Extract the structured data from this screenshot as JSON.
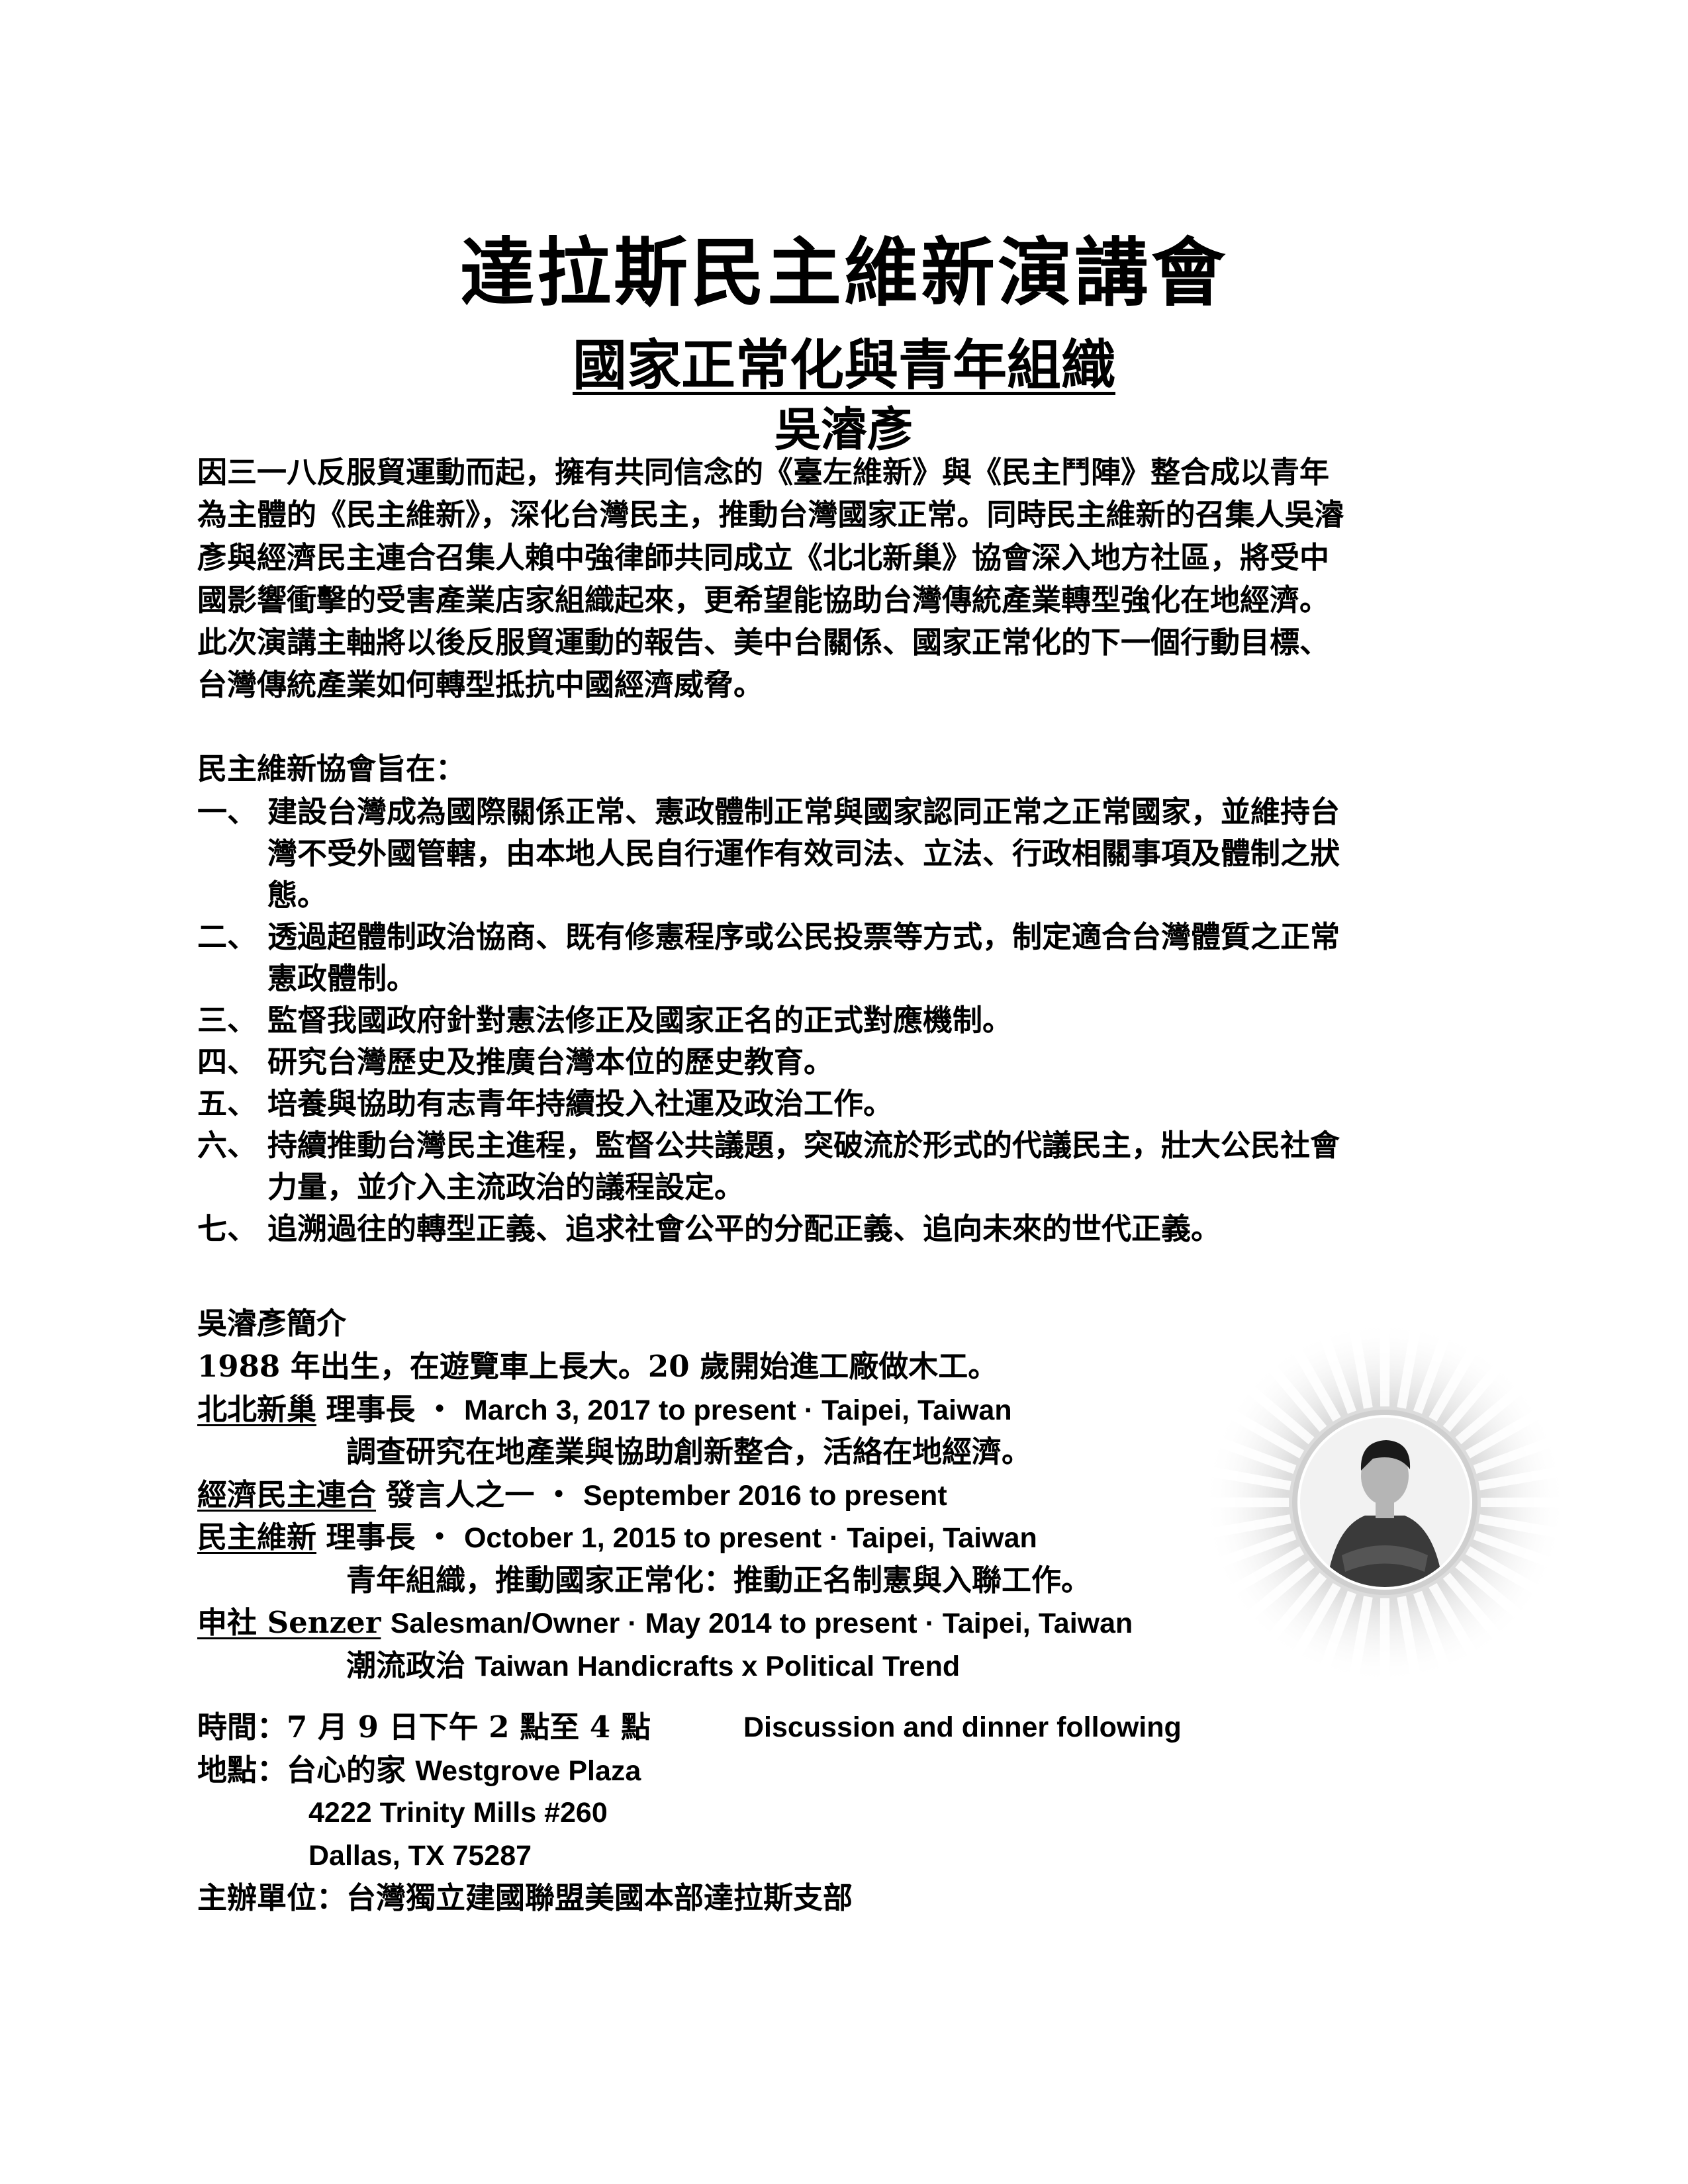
{
  "header": {
    "title": "達拉斯民主維新演講會",
    "subtitle": "國家正常化與青年組織",
    "speaker": "吳濬彥"
  },
  "intro": {
    "lines": [
      "因三一八反服貿運動而起，擁有共同信念的《臺左維新》與《民主鬥陣》整合成以青年",
      "為主體的《民主維新》，深化台灣民主，推動台灣國家正常。同時民主維新的召集人吳濬",
      "彥與經濟民主連合召集人賴中強律師共同成立《北北新巢》協會深入地方社區，將受中",
      "國影響衝擊的受害產業店家組織起來，更希望能協助台灣傳統產業轉型強化在地經濟。",
      "此次演講主軸將以後反服貿運動的報告、美中台關係、國家正常化的下一個行動目標、",
      "台灣傳統產業如何轉型抵抗中國經濟威脅。"
    ]
  },
  "mission": {
    "heading": "民主維新協會旨在：",
    "items": [
      {
        "num": "一、",
        "lines": [
          "建設台灣成為國際關係正常、憲政體制正常與國家認同正常之正常國家，並維持台",
          "灣不受外國管轄，由本地人民自行運作有效司法、立法、行政相關事項及體制之狀",
          "態。"
        ]
      },
      {
        "num": "二、",
        "lines": [
          "透過超體制政治協商、既有修憲程序或公民投票等方式，制定適合台灣體質之正常",
          "憲政體制。"
        ]
      },
      {
        "num": "三、",
        "lines": [
          "監督我國政府針對憲法修正及國家正名的正式對應機制。"
        ]
      },
      {
        "num": "四、",
        "lines": [
          "研究台灣歷史及推廣台灣本位的歷史教育。"
        ]
      },
      {
        "num": "五、",
        "lines": [
          "培養與協助有志青年持續投入社運及政治工作。"
        ]
      },
      {
        "num": "六、",
        "lines": [
          "持續推動台灣民主進程，監督公共議題，突破流於形式的代議民主，壯大公民社會",
          "力量，並介入主流政治的議程設定。"
        ]
      },
      {
        "num": "七、",
        "lines": [
          "追溯過往的轉型正義、追求社會公平的分配正義、追向未來的世代正義。"
        ]
      }
    ]
  },
  "bio": {
    "heading": "吳濬彥簡介",
    "born": "1988 年出生，在遊覽車上長大。20 歲開始進工廠做木工。",
    "positions": [
      {
        "org": "北北新巢",
        "role": "理事長",
        "sep": "・",
        "detail": "March 3, 2017 to present · Taipei, Taiwan",
        "note": "調查研究在地產業與協助創新整合，活絡在地經濟。"
      },
      {
        "org": "經濟民主連合",
        "role": "發言人之一",
        "sep": "・",
        "detail": "September 2016 to present",
        "note": ""
      },
      {
        "org": "民主維新",
        "role": "理事長",
        "sep": "・",
        "detail": "October 1, 2015 to present · Taipei, Taiwan",
        "note": "青年組織，推動國家正常化：推動正名制憲與入聯工作。"
      },
      {
        "org": "申社 Senzer",
        "role": "",
        "sep": "",
        "detail": "Salesman/Owner · May 2014 to present · Taipei, Taiwan",
        "note_zh": "潮流政治",
        "note_en": "Taiwan Handicrafts x Political Trend"
      }
    ]
  },
  "event": {
    "time_label": "時間：7 月 9 日下午 2 點至 4 點",
    "dinner": "Discussion and dinner following",
    "place_label": "地點：台心的家",
    "place_name": "Westgrove Plaza",
    "address1": "4222 Trinity Mills #260",
    "address2": "Dallas, TX 75287",
    "organizer": "主辦單位：台灣獨立建國聯盟美國本部達拉斯支部"
  },
  "photo": {
    "icon": "speaker-portrait",
    "colors": {
      "ray": "#e6e6e6",
      "ring": "#bdbdbd",
      "inner": "#f2f2f2",
      "shirt": "#3a3a3a",
      "skin": "#b5b5b5",
      "hair": "#1a1a1a"
    }
  }
}
